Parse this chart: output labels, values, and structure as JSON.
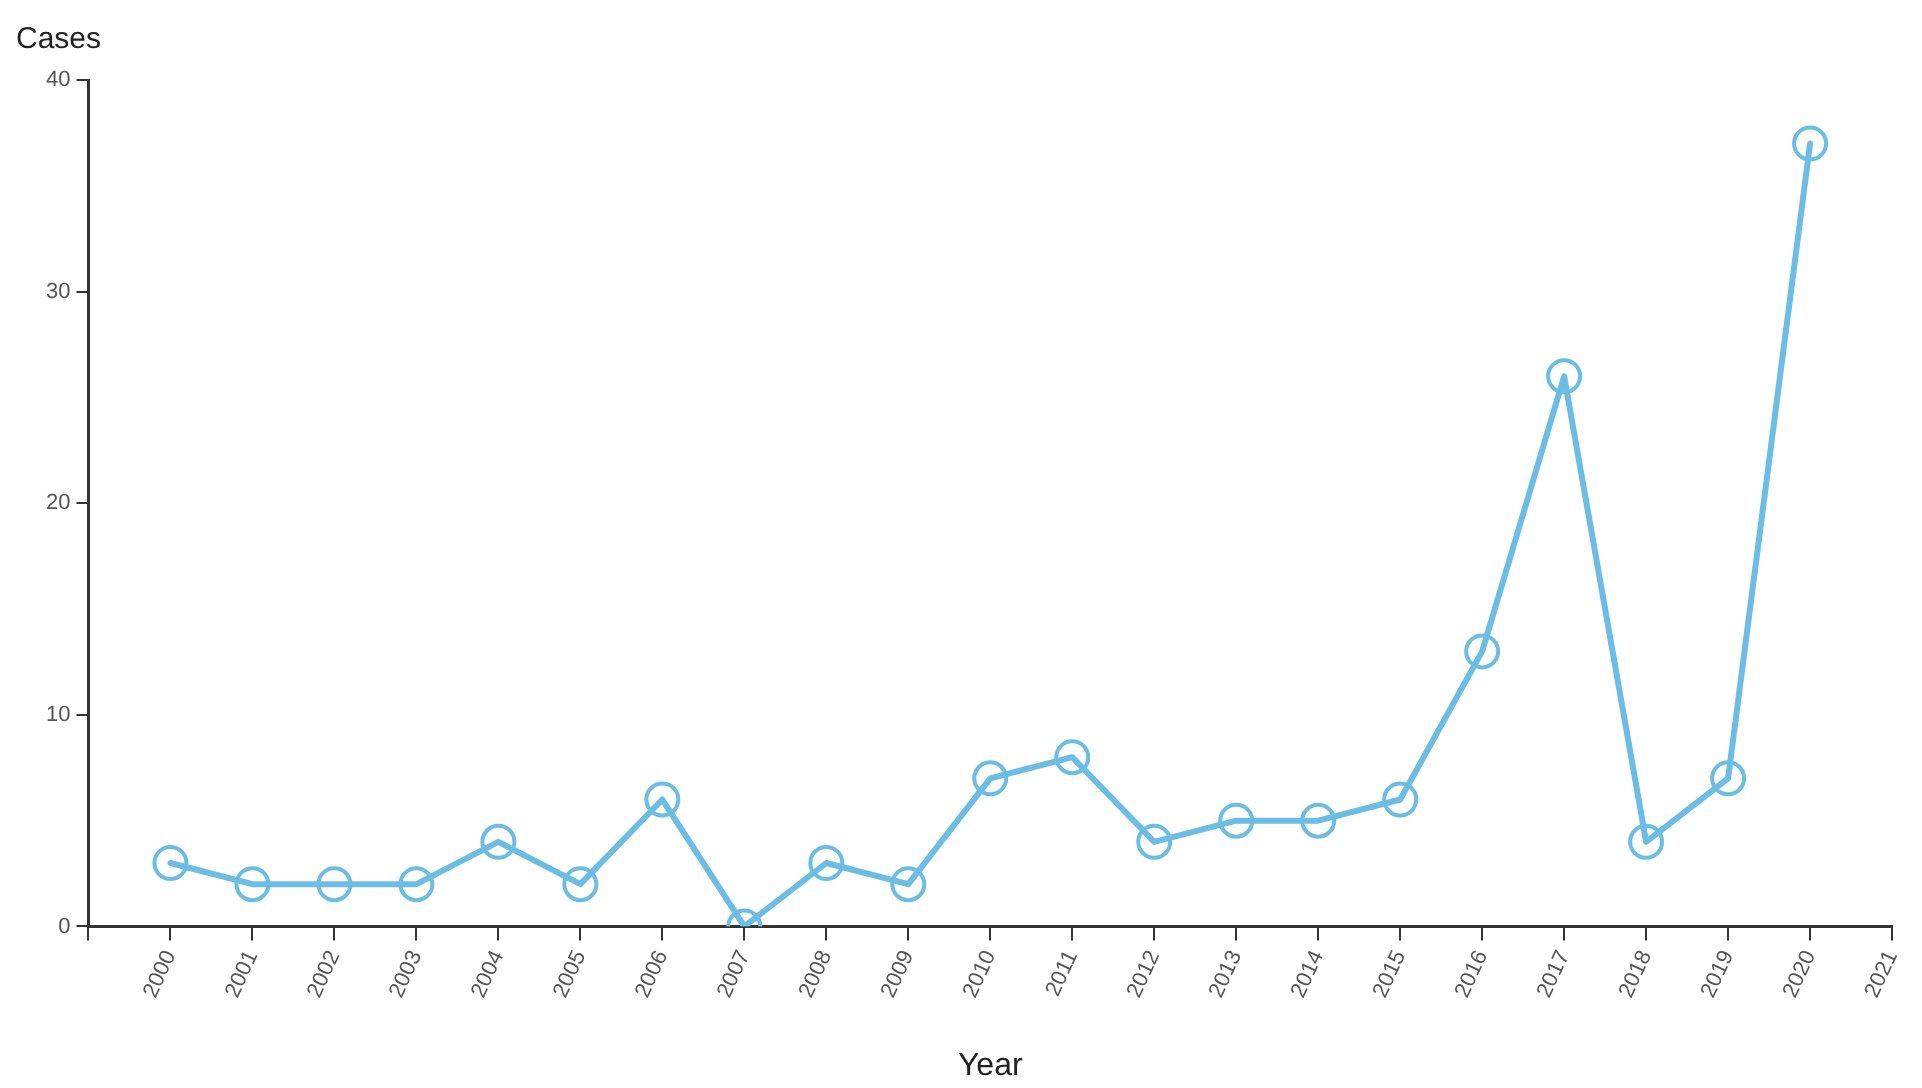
{
  "chart_data": {
    "type": "line",
    "xlabel": "Year",
    "ylabel": "Cases",
    "x": [
      2000,
      2001,
      2002,
      2003,
      2004,
      2005,
      2006,
      2007,
      2008,
      2009,
      2010,
      2011,
      2012,
      2013,
      2014,
      2015,
      2016,
      2017,
      2018,
      2019,
      2020
    ],
    "series": [
      {
        "color": "#6cbde4",
        "values": [
          3,
          2,
          2,
          2,
          4,
          2,
          6,
          0,
          3,
          2,
          7,
          8,
          4,
          5,
          5,
          6,
          13,
          26,
          4,
          7,
          37
        ]
      }
    ],
    "xlim": [
      1999,
      2021
    ],
    "xticks": [
      {
        "value": 1999,
        "label": null
      },
      2000,
      2001,
      2002,
      2003,
      2004,
      2005,
      2006,
      2007,
      2008,
      2009,
      2010,
      2011,
      2012,
      2013,
      2014,
      2015,
      2016,
      2017,
      2018,
      2019,
      2020,
      2021
    ],
    "ylim": [
      0,
      40
    ],
    "yticks": [
      0,
      10,
      20,
      30,
      40
    ],
    "grid": false,
    "legend": false,
    "marker": "circle",
    "line_style": "solid"
  }
}
